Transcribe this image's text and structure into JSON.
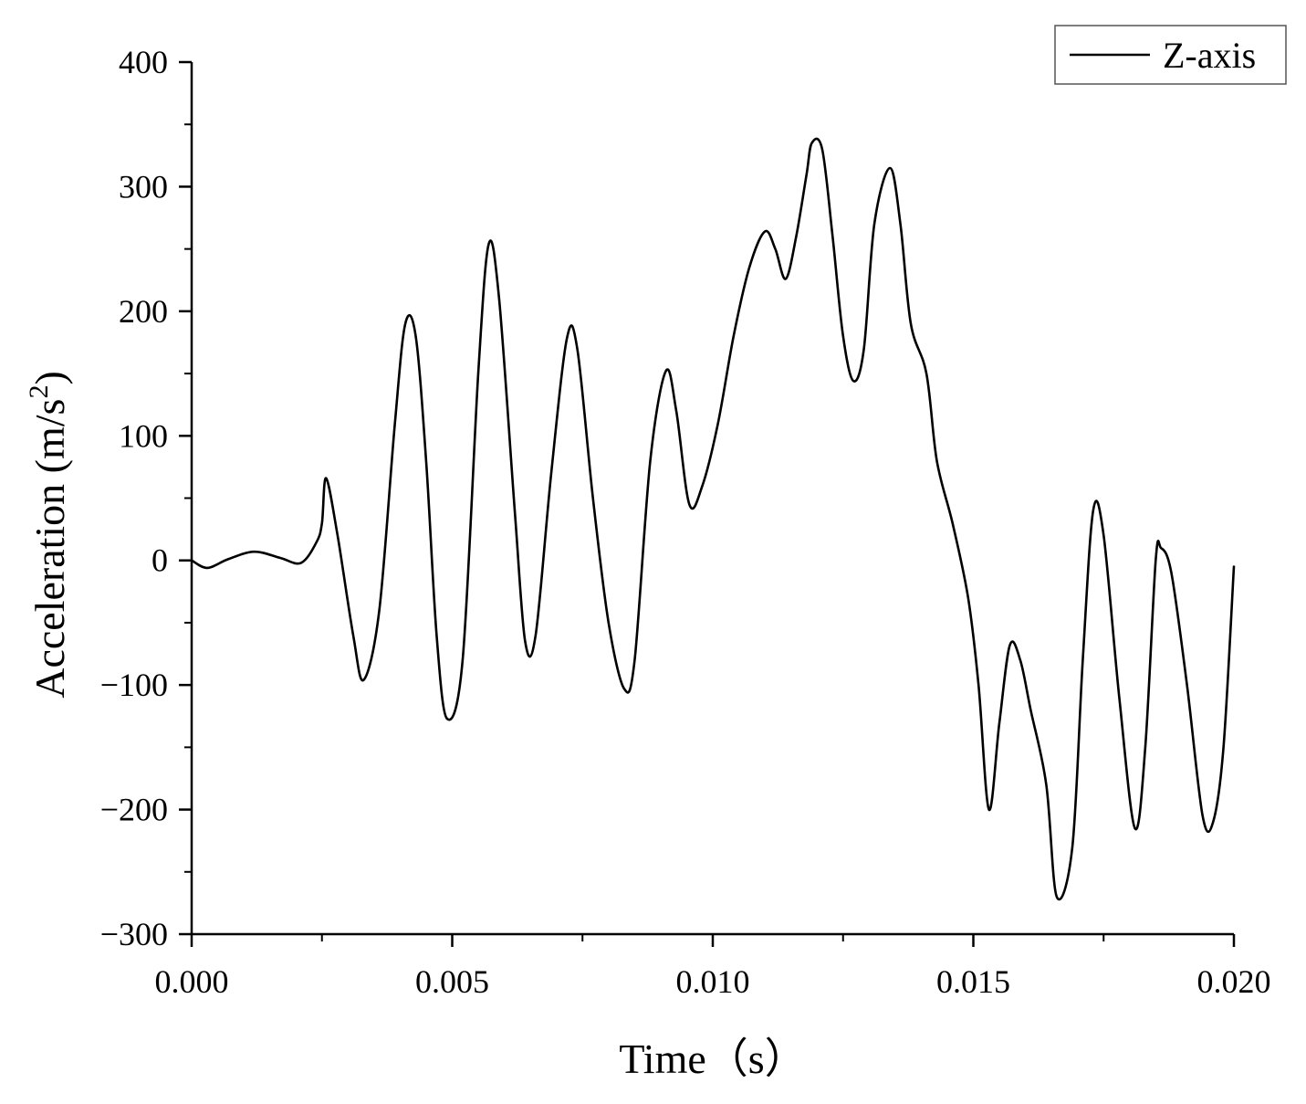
{
  "chart_data": {
    "type": "line",
    "xlabel": "Time（s）",
    "ylabel_main": "Acceleration (m/s",
    "ylabel_sup": "2",
    "ylabel_close": ")",
    "xlim": [
      0.0,
      0.02
    ],
    "ylim": [
      -300,
      400
    ],
    "x_ticks": [
      0.0,
      0.005,
      0.01,
      0.015,
      0.02
    ],
    "x_tick_labels": [
      "0.000",
      "0.005",
      "0.010",
      "0.015",
      "0.020"
    ],
    "y_ticks": [
      -300,
      -200,
      -100,
      0,
      100,
      200,
      300,
      400
    ],
    "y_tick_labels": [
      "−300",
      "−200",
      "−100",
      "0",
      "100",
      "200",
      "300",
      "400"
    ],
    "legend_position": "top-right",
    "grid": false,
    "series": [
      {
        "name": "Z-axis",
        "color": "#000000",
        "points": [
          [
            0.0,
            0
          ],
          [
            0.0003,
            -6
          ],
          [
            0.0007,
            1
          ],
          [
            0.0012,
            7
          ],
          [
            0.0017,
            2
          ],
          [
            0.0021,
            -2
          ],
          [
            0.0024,
            15
          ],
          [
            0.0025,
            30
          ],
          [
            0.00258,
            66
          ],
          [
            0.0028,
            20
          ],
          [
            0.0031,
            -60
          ],
          [
            0.0033,
            -96
          ],
          [
            0.0036,
            -40
          ],
          [
            0.0039,
            110
          ],
          [
            0.0041,
            190
          ],
          [
            0.0043,
            180
          ],
          [
            0.0045,
            80
          ],
          [
            0.0047,
            -60
          ],
          [
            0.0049,
            -127
          ],
          [
            0.0052,
            -80
          ],
          [
            0.0055,
            150
          ],
          [
            0.0057,
            254
          ],
          [
            0.0059,
            210
          ],
          [
            0.0062,
            40
          ],
          [
            0.0064,
            -65
          ],
          [
            0.0066,
            -60
          ],
          [
            0.0069,
            70
          ],
          [
            0.0072,
            178
          ],
          [
            0.0074,
            170
          ],
          [
            0.0077,
            50
          ],
          [
            0.008,
            -50
          ],
          [
            0.0083,
            -103
          ],
          [
            0.0085,
            -80
          ],
          [
            0.0088,
            80
          ],
          [
            0.0091,
            152
          ],
          [
            0.0093,
            120
          ],
          [
            0.00955,
            45
          ],
          [
            0.0098,
            60
          ],
          [
            0.0101,
            110
          ],
          [
            0.0104,
            180
          ],
          [
            0.0107,
            235
          ],
          [
            0.011,
            264
          ],
          [
            0.0112,
            250
          ],
          [
            0.0114,
            226
          ],
          [
            0.0116,
            260
          ],
          [
            0.0118,
            310
          ],
          [
            0.0119,
            335
          ],
          [
            0.0121,
            330
          ],
          [
            0.0123,
            260
          ],
          [
            0.0125,
            180
          ],
          [
            0.0127,
            144
          ],
          [
            0.0129,
            170
          ],
          [
            0.0131,
            270
          ],
          [
            0.0134,
            315
          ],
          [
            0.0136,
            270
          ],
          [
            0.0138,
            190
          ],
          [
            0.0141,
            150
          ],
          [
            0.0143,
            80
          ],
          [
            0.0146,
            30
          ],
          [
            0.0149,
            -30
          ],
          [
            0.0151,
            -100
          ],
          [
            0.0153,
            -200
          ],
          [
            0.0155,
            -130
          ],
          [
            0.0157,
            -68
          ],
          [
            0.0159,
            -80
          ],
          [
            0.0161,
            -120
          ],
          [
            0.0164,
            -180
          ],
          [
            0.0166,
            -270
          ],
          [
            0.0169,
            -230
          ],
          [
            0.0171,
            -80
          ],
          [
            0.0173,
            40
          ],
          [
            0.0175,
            20
          ],
          [
            0.0178,
            -110
          ],
          [
            0.0181,
            -215
          ],
          [
            0.0183,
            -150
          ],
          [
            0.0185,
            0
          ],
          [
            0.0186,
            10
          ],
          [
            0.0188,
            -10
          ],
          [
            0.0191,
            -100
          ],
          [
            0.0194,
            -205
          ],
          [
            0.0196,
            -210
          ],
          [
            0.0198,
            -150
          ],
          [
            0.02,
            -5
          ]
        ]
      }
    ]
  }
}
